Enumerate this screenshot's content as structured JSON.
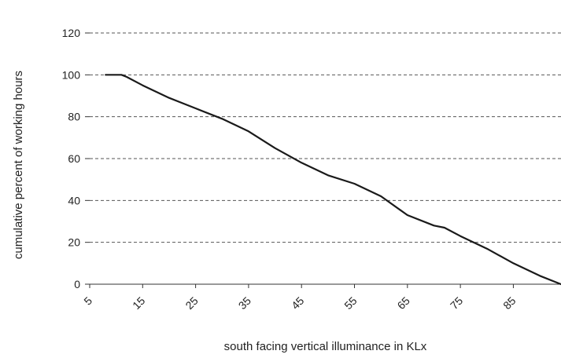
{
  "chart_data": {
    "type": "line",
    "xlabel": "south facing vertical illuminance in KLx",
    "ylabel": "cumulative percent of working hours",
    "xlim": [
      5,
      94
    ],
    "ylim": [
      0,
      120
    ],
    "x_ticks": [
      5,
      15,
      25,
      35,
      45,
      55,
      65,
      75,
      85
    ],
    "x_tick_labels": [
      "5",
      "15",
      "25",
      "35",
      "45",
      "55",
      "65",
      "75",
      "85"
    ],
    "y_ticks": [
      0,
      20,
      40,
      60,
      80,
      100,
      120
    ],
    "y_tick_labels": [
      "0",
      "20",
      "40",
      "60",
      "80",
      "100",
      "120"
    ],
    "grid": "horizontal dashed",
    "legend": "none",
    "colors": {
      "line": "#1a1a1a",
      "grid": "#555555",
      "axis": "#333333"
    },
    "series": [
      {
        "x": [
          8,
          10,
          11,
          12,
          15,
          20,
          25,
          30,
          35,
          40,
          45,
          50,
          55,
          60,
          65,
          70,
          72,
          75,
          80,
          85,
          90,
          94
        ],
        "y": [
          100,
          100,
          100,
          99,
          95,
          89,
          84,
          79,
          73,
          65,
          58,
          52,
          48,
          42,
          33,
          28,
          27,
          23,
          17,
          10,
          4,
          0
        ]
      }
    ]
  }
}
